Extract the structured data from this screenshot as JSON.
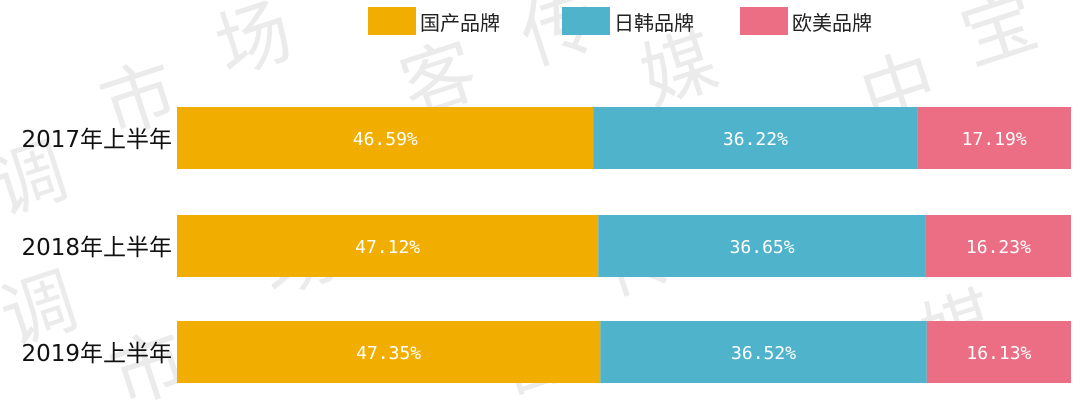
{
  "chart_data": {
    "type": "bar",
    "orientation": "horizontal",
    "stacked": true,
    "categories": [
      "2017年上半年",
      "2018年上半年",
      "2019年上半年"
    ],
    "series": [
      {
        "name": "国产品牌",
        "color": "#F2AE00",
        "values": [
          46.59,
          47.12,
          47.35
        ],
        "labels": [
          "46.59%",
          "47.12%",
          "47.35%"
        ]
      },
      {
        "name": "日韩品牌",
        "color": "#4FB3CB",
        "values": [
          36.22,
          36.65,
          36.52
        ],
        "labels": [
          "36.22%",
          "36.65%",
          "36.52%"
        ]
      },
      {
        "name": "欧美品牌",
        "color": "#EB6E84",
        "values": [
          17.19,
          16.23,
          16.13
        ],
        "labels": [
          "17.19%",
          "16.23%",
          "16.13%"
        ]
      }
    ],
    "xlim": [
      0,
      100
    ],
    "title": "",
    "xlabel": "",
    "ylabel": "",
    "grid": false,
    "legend_position": "top-center"
  },
  "watermark": {
    "characters": [
      "调",
      "市",
      "场",
      "客",
      "传",
      "媒",
      "中",
      "宝",
      "调",
      "市",
      "场",
      "客",
      "传",
      "媒"
    ]
  }
}
